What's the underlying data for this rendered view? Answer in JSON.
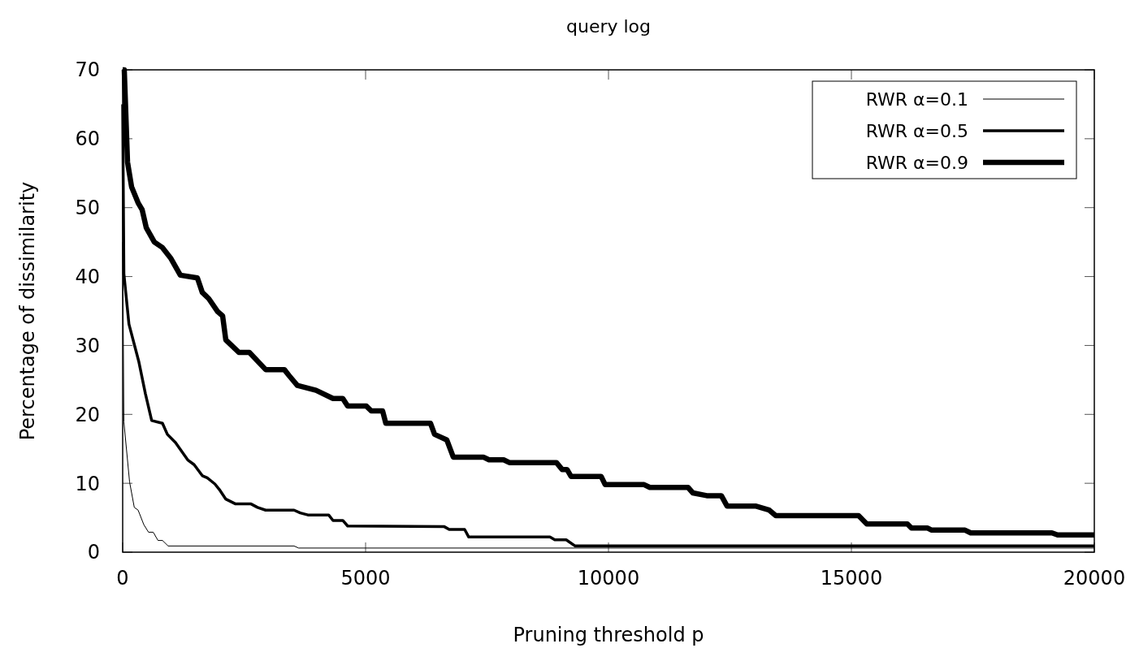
{
  "chart_data": {
    "type": "line",
    "title": "query log",
    "xlabel": "Pruning threshold p",
    "ylabel": "Percentage of dissimilarity",
    "xlim": [
      0,
      20000
    ],
    "xticks": [
      0,
      5000,
      10000,
      15000,
      20000
    ],
    "ylim": [
      0,
      70
    ],
    "yticks": [
      0,
      10,
      20,
      30,
      40,
      50,
      60,
      70
    ],
    "grid": false,
    "legend": "top right",
    "line_style": "solid",
    "series": [
      {
        "name": "RWR α=0.1",
        "color": "#000000",
        "x": [
          0,
          25,
          142,
          239,
          318,
          435,
          532,
          629,
          727,
          819,
          936,
          3528,
          3621,
          20000
        ],
        "values": [
          45,
          18.9,
          10.2,
          6.5,
          6.1,
          4.0,
          2.9,
          2.9,
          1.7,
          1.7,
          0.9,
          0.9,
          0.6,
          0.6
        ]
      },
      {
        "name": "RWR α=0.5",
        "color": "#000000",
        "x": [
          0,
          25,
          129,
          334,
          468,
          597,
          819,
          920,
          1087,
          1338,
          1471,
          1639,
          1739,
          1898,
          1990,
          2123,
          2324,
          2642,
          2776,
          2943,
          3528,
          3655,
          3812,
          4240,
          4330,
          4531,
          4631,
          6621,
          6721,
          7039,
          7123,
          8795,
          8895,
          9129,
          9313,
          20000
        ],
        "values": [
          65,
          40.4,
          33.1,
          27.6,
          23,
          19.1,
          18.7,
          17.1,
          15.9,
          13.4,
          12.7,
          11.1,
          10.8,
          9.9,
          9.1,
          7.7,
          7.0,
          7.0,
          6.5,
          6.1,
          6.1,
          5.7,
          5.4,
          5.4,
          4.6,
          4.6,
          3.8,
          3.7,
          3.3,
          3.3,
          2.2,
          2.2,
          1.8,
          1.8,
          0.9,
          0.9
        ]
      },
      {
        "name": "RWR α=0.9",
        "color": "#000000",
        "x": [
          0,
          33,
          100,
          184,
          318,
          401,
          485,
          652,
          819,
          986,
          1187,
          1538,
          1639,
          1772,
          1956,
          2057,
          2123,
          2391,
          2608,
          2943,
          3327,
          3428,
          3595,
          3979,
          4330,
          4531,
          4631,
          5016,
          5116,
          5350,
          5417,
          6337,
          6420,
          6671,
          6805,
          7424,
          7541,
          7842,
          7959,
          8928,
          9045,
          9146,
          9229,
          9848,
          9932,
          10734,
          10851,
          11637,
          11737,
          12022,
          12323,
          12440,
          13025,
          13309,
          13443,
          15148,
          15316,
          16152,
          16235,
          16570,
          16653,
          17339,
          17456,
          19128,
          19243,
          20000
        ],
        "values": [
          70,
          70,
          56.6,
          53,
          50.7,
          49.7,
          47.1,
          45,
          44.2,
          42.7,
          40.2,
          39.8,
          37.7,
          36.8,
          34.9,
          34.3,
          30.8,
          29,
          29,
          26.5,
          26.5,
          25.6,
          24.2,
          23.5,
          22.3,
          22.3,
          21.2,
          21.2,
          20.5,
          20.5,
          18.7,
          18.7,
          17.1,
          16.3,
          13.8,
          13.8,
          13.4,
          13.4,
          13,
          13,
          12,
          12,
          11,
          11,
          9.8,
          9.8,
          9.4,
          9.4,
          8.6,
          8.2,
          8.2,
          6.7,
          6.7,
          6.1,
          5.3,
          5.3,
          4.1,
          4.1,
          3.5,
          3.5,
          3.2,
          3.2,
          2.8,
          2.8,
          2.5,
          2.5
        ]
      }
    ]
  }
}
